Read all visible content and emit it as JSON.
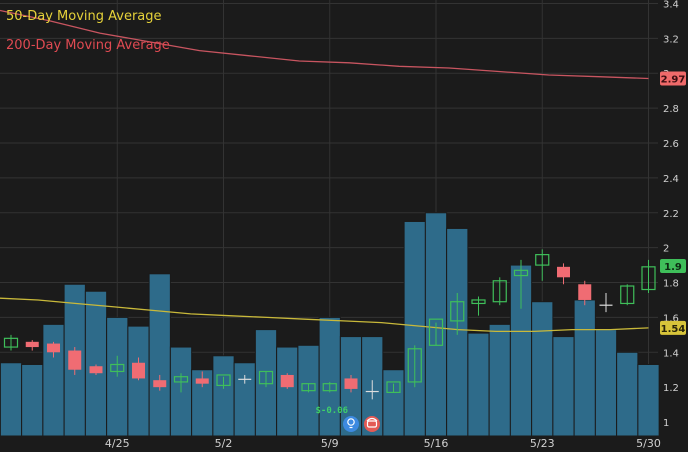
{
  "legend": {
    "ma50": {
      "label": "50-Day Moving Average",
      "color": "#e6d23a"
    },
    "ma200": {
      "label": "200-Day Moving Average",
      "color": "#e04a52"
    }
  },
  "colors": {
    "background": "#1b1b1b",
    "grid": "#333333",
    "volume": "#2e6b8a",
    "volume_edge": "#1b1b1b",
    "up": "#3fbf5a",
    "down": "#f06c73",
    "neutral": "#dddddd",
    "ma50": "#c9b93a",
    "ma200": "#c85560",
    "badge_green": "#3fbf5a",
    "badge_red": "#ef6a6a",
    "badge_yellow": "#d7c43a",
    "icon_blue": "#3d8ae0",
    "icon_red": "#e35a55"
  },
  "chart_data": {
    "type": "candlestick",
    "y_axis": {
      "ticks": [
        "1",
        "1.2",
        "1.4",
        "1.6",
        "1.8",
        "2",
        "2.2",
        "2.4",
        "2.6",
        "2.8",
        "3",
        "3.2",
        "3.4"
      ],
      "range": [
        0.92,
        3.42
      ],
      "grid": true,
      "side": "right"
    },
    "x_axis": {
      "labels": [
        {
          "text": "4/25",
          "index": 5
        },
        {
          "text": "5/2",
          "index": 10
        },
        {
          "text": "5/9",
          "index": 15
        },
        {
          "text": "5/16",
          "index": 20
        },
        {
          "text": "5/23",
          "index": 25
        },
        {
          "text": "5/30",
          "index": 30
        }
      ]
    },
    "ohlc": [
      {
        "o": 1.43,
        "h": 1.5,
        "l": 1.41,
        "c": 1.48
      },
      {
        "o": 1.46,
        "h": 1.47,
        "l": 1.41,
        "c": 1.43
      },
      {
        "o": 1.45,
        "h": 1.46,
        "l": 1.37,
        "c": 1.4
      },
      {
        "o": 1.41,
        "h": 1.43,
        "l": 1.27,
        "c": 1.3
      },
      {
        "o": 1.32,
        "h": 1.33,
        "l": 1.27,
        "c": 1.28
      },
      {
        "o": 1.29,
        "h": 1.38,
        "l": 1.26,
        "c": 1.33
      },
      {
        "o": 1.34,
        "h": 1.37,
        "l": 1.24,
        "c": 1.25
      },
      {
        "o": 1.24,
        "h": 1.27,
        "l": 1.18,
        "c": 1.2
      },
      {
        "o": 1.23,
        "h": 1.28,
        "l": 1.17,
        "c": 1.26
      },
      {
        "o": 1.25,
        "h": 1.29,
        "l": 1.2,
        "c": 1.22
      },
      {
        "o": 1.21,
        "h": 1.26,
        "l": 1.19,
        "c": 1.27
      },
      {
        "o": 1.245,
        "h": 1.27,
        "l": 1.22,
        "c": 1.245
      },
      {
        "o": 1.22,
        "h": 1.29,
        "l": 1.2,
        "c": 1.29
      },
      {
        "o": 1.27,
        "h": 1.28,
        "l": 1.19,
        "c": 1.2
      },
      {
        "o": 1.18,
        "h": 1.22,
        "l": 1.17,
        "c": 1.22
      },
      {
        "o": 1.18,
        "h": 1.23,
        "l": 1.17,
        "c": 1.22
      },
      {
        "o": 1.25,
        "h": 1.27,
        "l": 1.17,
        "c": 1.19
      },
      {
        "o": 1.175,
        "h": 1.24,
        "l": 1.13,
        "c": 1.175
      },
      {
        "o": 1.17,
        "h": 1.22,
        "l": 1.17,
        "c": 1.23
      },
      {
        "o": 1.23,
        "h": 1.44,
        "l": 1.2,
        "c": 1.42
      },
      {
        "o": 1.44,
        "h": 1.57,
        "l": 1.44,
        "c": 1.59
      },
      {
        "o": 1.58,
        "h": 1.74,
        "l": 1.5,
        "c": 1.69
      },
      {
        "o": 1.68,
        "h": 1.72,
        "l": 1.61,
        "c": 1.7
      },
      {
        "o": 1.69,
        "h": 1.83,
        "l": 1.67,
        "c": 1.81
      },
      {
        "o": 1.84,
        "h": 1.93,
        "l": 1.65,
        "c": 1.87
      },
      {
        "o": 1.9,
        "h": 1.99,
        "l": 1.81,
        "c": 1.96
      },
      {
        "o": 1.89,
        "h": 1.91,
        "l": 1.79,
        "c": 1.83
      },
      {
        "o": 1.79,
        "h": 1.81,
        "l": 1.67,
        "c": 1.7
      },
      {
        "o": 1.67,
        "h": 1.74,
        "l": 1.63,
        "c": 1.67
      },
      {
        "o": 1.68,
        "h": 1.79,
        "l": 1.67,
        "c": 1.78
      },
      {
        "o": 1.76,
        "h": 1.93,
        "l": 1.74,
        "c": 1.89
      }
    ],
    "volume": [
      1.34,
      1.33,
      1.56,
      1.79,
      1.75,
      1.6,
      1.55,
      1.85,
      1.43,
      1.3,
      1.38,
      1.34,
      1.53,
      1.43,
      1.44,
      1.6,
      1.49,
      1.49,
      1.3,
      2.15,
      2.2,
      2.11,
      1.51,
      1.56,
      1.9,
      1.69,
      1.49,
      1.7,
      1.53,
      1.4,
      1.33
    ],
    "ma200": [
      3.36,
      3.3,
      3.23,
      3.18,
      3.13,
      3.1,
      3.07,
      3.06,
      3.04,
      3.03,
      3.01,
      2.99,
      2.98,
      2.97
    ],
    "ma50": [
      1.71,
      1.7,
      1.68,
      1.66,
      1.64,
      1.62,
      1.61,
      1.6,
      1.59,
      1.58,
      1.57,
      1.55,
      1.53,
      1.52,
      1.52,
      1.53,
      1.53,
      1.54
    ],
    "last_values": {
      "ma200": {
        "text": "2.97",
        "value": 2.97
      },
      "price": {
        "text": "1.9",
        "value": 1.895
      },
      "ma50": {
        "text": "1.54",
        "value": 1.54
      }
    },
    "event": {
      "label": "$-0.06",
      "index": 15
    }
  }
}
